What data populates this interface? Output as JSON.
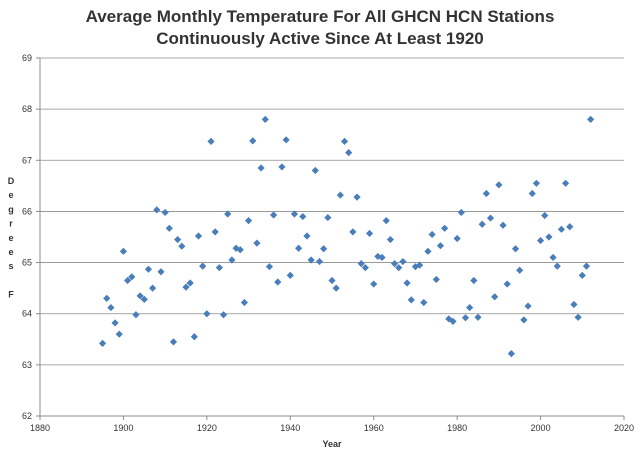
{
  "chart_data": {
    "type": "scatter",
    "title_lines": [
      "Average Monthly Temperature For All GHCN HCN Stations",
      "Continuously Active Since At Least 1920"
    ],
    "xlabel": "Year",
    "ylabel": "Degrees F",
    "ylabel_letters": [
      "D",
      "e",
      "g",
      "r",
      "e",
      "e",
      "s",
      "",
      "F"
    ],
    "xlim": [
      1880,
      2020
    ],
    "ylim": [
      62,
      69
    ],
    "xticks": [
      1880,
      1900,
      1920,
      1940,
      1960,
      1980,
      2000,
      2020
    ],
    "yticks": [
      62,
      63,
      64,
      65,
      66,
      67,
      68,
      69
    ],
    "grid": true,
    "marker_color": "#4a7ebb",
    "points": [
      [
        1895,
        63.42
      ],
      [
        1896,
        64.3
      ],
      [
        1897,
        64.12
      ],
      [
        1898,
        63.82
      ],
      [
        1899,
        63.6
      ],
      [
        1900,
        65.22
      ],
      [
        1901,
        64.65
      ],
      [
        1902,
        64.72
      ],
      [
        1903,
        63.98
      ],
      [
        1904,
        64.35
      ],
      [
        1905,
        64.28
      ],
      [
        1906,
        64.87
      ],
      [
        1907,
        64.5
      ],
      [
        1908,
        66.03
      ],
      [
        1909,
        64.82
      ],
      [
        1910,
        65.98
      ],
      [
        1911,
        65.67
      ],
      [
        1912,
        63.45
      ],
      [
        1913,
        65.45
      ],
      [
        1914,
        65.32
      ],
      [
        1915,
        64.52
      ],
      [
        1916,
        64.6
      ],
      [
        1917,
        63.55
      ],
      [
        1918,
        65.52
      ],
      [
        1919,
        64.93
      ],
      [
        1920,
        64.0
      ],
      [
        1921,
        67.37
      ],
      [
        1922,
        65.6
      ],
      [
        1923,
        64.9
      ],
      [
        1924,
        63.98
      ],
      [
        1925,
        65.95
      ],
      [
        1926,
        65.05
      ],
      [
        1927,
        65.28
      ],
      [
        1928,
        65.25
      ],
      [
        1929,
        64.22
      ],
      [
        1930,
        65.82
      ],
      [
        1931,
        67.38
      ],
      [
        1932,
        65.38
      ],
      [
        1933,
        66.85
      ],
      [
        1934,
        67.8
      ],
      [
        1935,
        64.92
      ],
      [
        1936,
        65.93
      ],
      [
        1937,
        64.62
      ],
      [
        1938,
        66.87
      ],
      [
        1939,
        67.4
      ],
      [
        1940,
        64.75
      ],
      [
        1941,
        65.95
      ],
      [
        1942,
        65.28
      ],
      [
        1943,
        65.9
      ],
      [
        1944,
        65.52
      ],
      [
        1945,
        65.05
      ],
      [
        1946,
        66.8
      ],
      [
        1947,
        65.02
      ],
      [
        1948,
        65.27
      ],
      [
        1949,
        65.88
      ],
      [
        1950,
        64.65
      ],
      [
        1951,
        64.5
      ],
      [
        1952,
        66.32
      ],
      [
        1953,
        67.37
      ],
      [
        1954,
        67.15
      ],
      [
        1955,
        65.6
      ],
      [
        1956,
        66.28
      ],
      [
        1957,
        64.98
      ],
      [
        1958,
        64.9
      ],
      [
        1959,
        65.57
      ],
      [
        1960,
        64.58
      ],
      [
        1961,
        65.12
      ],
      [
        1962,
        65.1
      ],
      [
        1963,
        65.82
      ],
      [
        1964,
        65.45
      ],
      [
        1965,
        64.98
      ],
      [
        1966,
        64.9
      ],
      [
        1967,
        65.02
      ],
      [
        1968,
        64.6
      ],
      [
        1969,
        64.27
      ],
      [
        1970,
        64.92
      ],
      [
        1971,
        64.95
      ],
      [
        1972,
        64.22
      ],
      [
        1973,
        65.22
      ],
      [
        1974,
        65.55
      ],
      [
        1975,
        64.67
      ],
      [
        1976,
        65.33
      ],
      [
        1977,
        65.67
      ],
      [
        1978,
        63.9
      ],
      [
        1979,
        63.85
      ],
      [
        1980,
        65.47
      ],
      [
        1981,
        65.98
      ],
      [
        1982,
        63.92
      ],
      [
        1983,
        64.12
      ],
      [
        1984,
        64.65
      ],
      [
        1985,
        63.93
      ],
      [
        1986,
        65.75
      ],
      [
        1987,
        66.35
      ],
      [
        1988,
        65.87
      ],
      [
        1989,
        64.33
      ],
      [
        1990,
        66.52
      ],
      [
        1991,
        65.73
      ],
      [
        1992,
        64.58
      ],
      [
        1993,
        63.22
      ],
      [
        1994,
        65.27
      ],
      [
        1995,
        64.85
      ],
      [
        1996,
        63.88
      ],
      [
        1997,
        64.15
      ],
      [
        1998,
        66.35
      ],
      [
        1999,
        66.55
      ],
      [
        2000,
        65.43
      ],
      [
        2001,
        65.92
      ],
      [
        2002,
        65.5
      ],
      [
        2003,
        65.1
      ],
      [
        2004,
        64.93
      ],
      [
        2005,
        65.65
      ],
      [
        2006,
        66.55
      ],
      [
        2007,
        65.7
      ],
      [
        2008,
        64.18
      ],
      [
        2009,
        63.93
      ],
      [
        2010,
        64.75
      ],
      [
        2011,
        64.93
      ],
      [
        2012,
        67.8
      ]
    ]
  }
}
